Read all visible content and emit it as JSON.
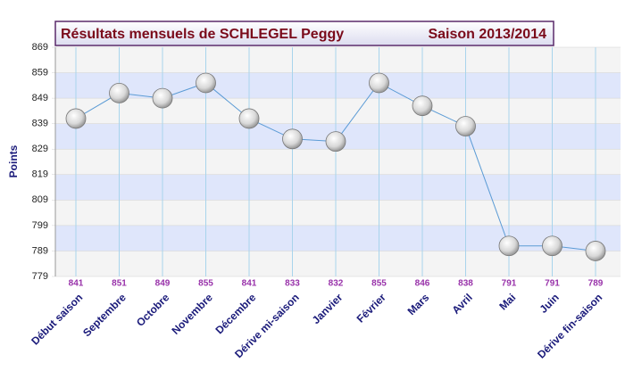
{
  "chart_data": {
    "type": "line",
    "title": "Résultats mensuels de  SCHLEGEL Peggy",
    "subtitle": "Saison 2013/2014",
    "y_label": "Points",
    "categories": [
      "Début saison",
      "Septembre",
      "Octobre",
      "Novembre",
      "Décembre",
      "Dérive mi-saison",
      "Janvier",
      "Février",
      "Mars",
      "Avril",
      "Mai",
      "Juin",
      "Dérive fin-saison"
    ],
    "values": [
      841,
      851,
      849,
      855,
      841,
      833,
      832,
      855,
      846,
      838,
      791,
      791,
      789
    ],
    "color": "#5b9bd5",
    "ylim": [
      779,
      869
    ],
    "yticks": [
      779,
      789,
      799,
      809,
      819,
      829,
      839,
      849,
      859,
      869
    ],
    "grid": true
  }
}
